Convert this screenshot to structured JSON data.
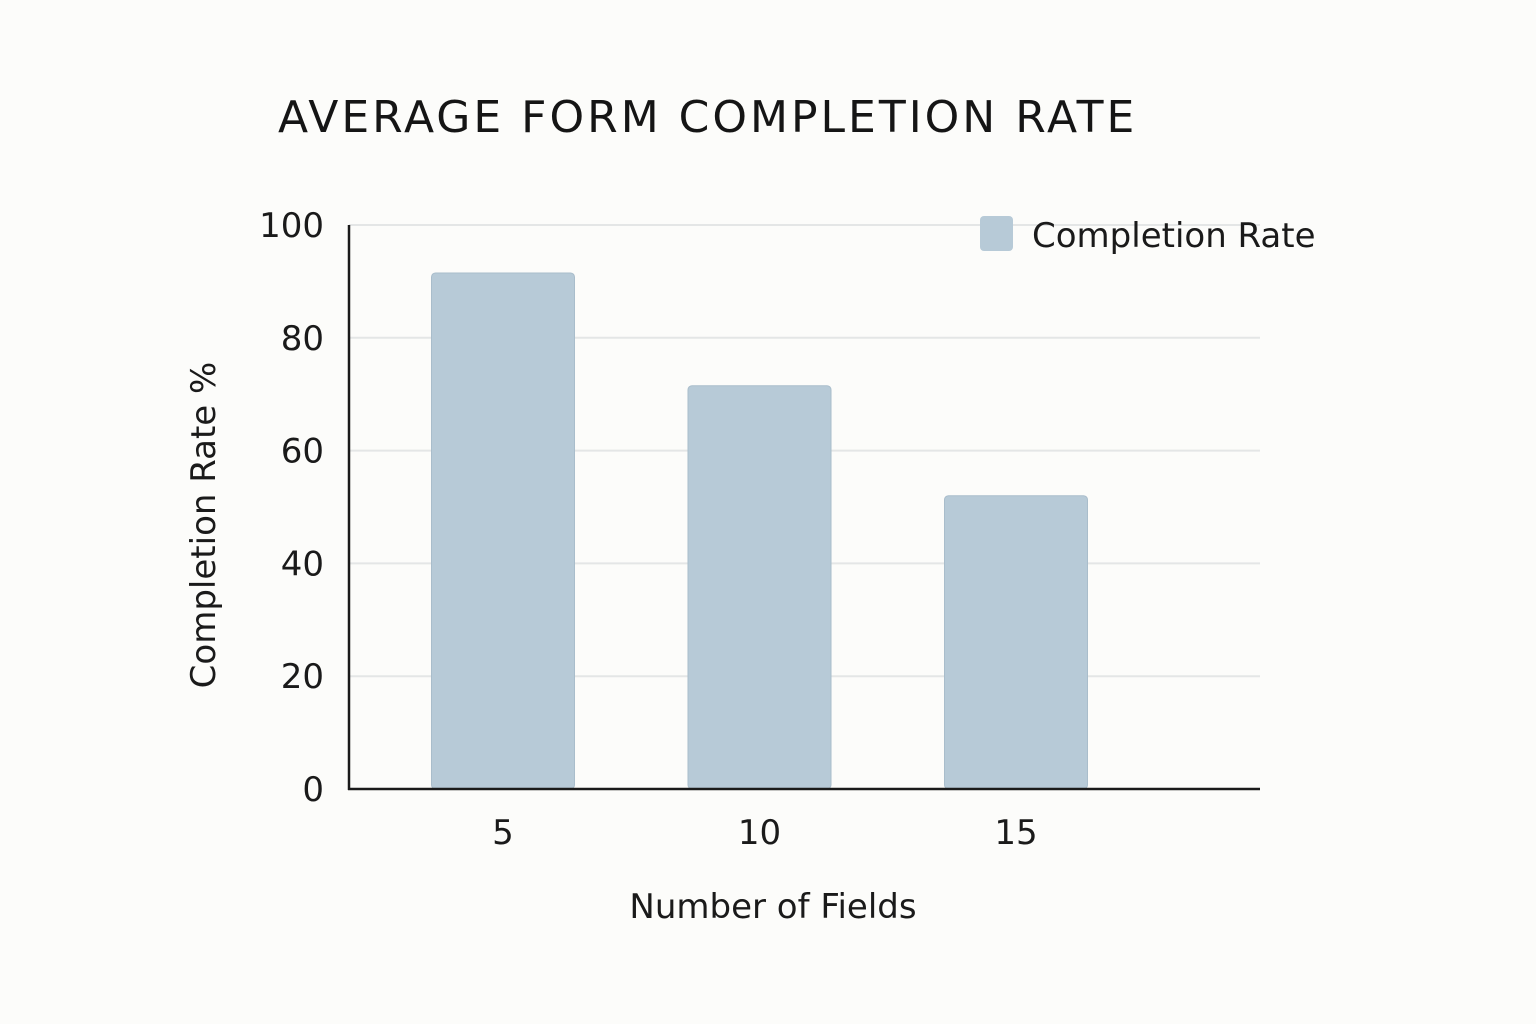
{
  "chart_data": {
    "type": "bar",
    "title": "AVERAGE FORM COMPLETION RATE",
    "xlabel": "Number of Fields",
    "ylabel": "Completion Rate %",
    "categories": [
      "5",
      "10",
      "15"
    ],
    "series": [
      {
        "name": "Completion Rate",
        "values": [
          91.5,
          71.5,
          52
        ],
        "color": "#b7cad7"
      }
    ],
    "ylim": [
      0,
      100
    ],
    "yticks": [
      0,
      20,
      40,
      60,
      80,
      100
    ],
    "grid": true,
    "legend": "top-right"
  }
}
